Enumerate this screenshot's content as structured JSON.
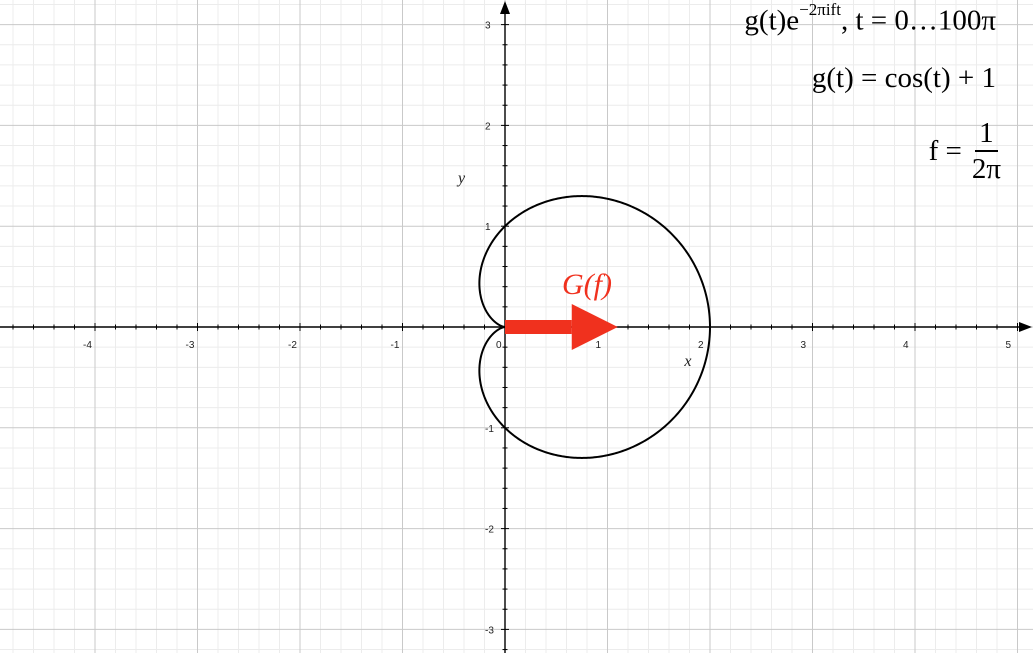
{
  "chart_data": {
    "type": "line",
    "title": "",
    "xlabel": "x",
    "ylabel": "y",
    "xlim": [
      -4.9,
      5.0
    ],
    "ylim": [
      -3.2,
      3.0
    ],
    "x_ticks": [
      "-4",
      "-3",
      "-2",
      "-1",
      "0",
      "1",
      "2",
      "3",
      "4",
      "5"
    ],
    "y_ticks": [
      "3",
      "2",
      "1",
      "-1",
      "-2",
      "-3"
    ],
    "grid": true,
    "minor_grid": true,
    "series": [
      {
        "type": "parametric-curve",
        "equation": "(cos(t)+1) * (cos(t), -sin(t))",
        "t_range": [
          0,
          6.2832
        ],
        "points_sample": [
          {
            "x": 2.0,
            "y": 0.0
          },
          {
            "x": 0.75,
            "y": -1.3
          },
          {
            "x": 0.0,
            "y": -1.0
          },
          {
            "x": -0.25,
            "y": -0.43
          },
          {
            "x": 0.0,
            "y": 0.0
          },
          {
            "x": -0.25,
            "y": 0.43
          },
          {
            "x": 0.0,
            "y": 1.0
          },
          {
            "x": 0.75,
            "y": 1.3
          }
        ],
        "color": "#000000"
      },
      {
        "type": "arrow",
        "from": {
          "x": 0,
          "y": 0
        },
        "to": {
          "x": 1.1,
          "y": 0
        },
        "color": "#f0311e"
      }
    ],
    "annotations": {
      "vector_label": "G(f)",
      "formula_line1": {
        "main": "g(t)e",
        "sup": "−2πift",
        "rest": ", t = 0…100π"
      },
      "formula_line2": "g(t) = cos(t) + 1",
      "formula_line3": {
        "lhs": "f =",
        "num": "1",
        "den": "2π"
      }
    }
  }
}
